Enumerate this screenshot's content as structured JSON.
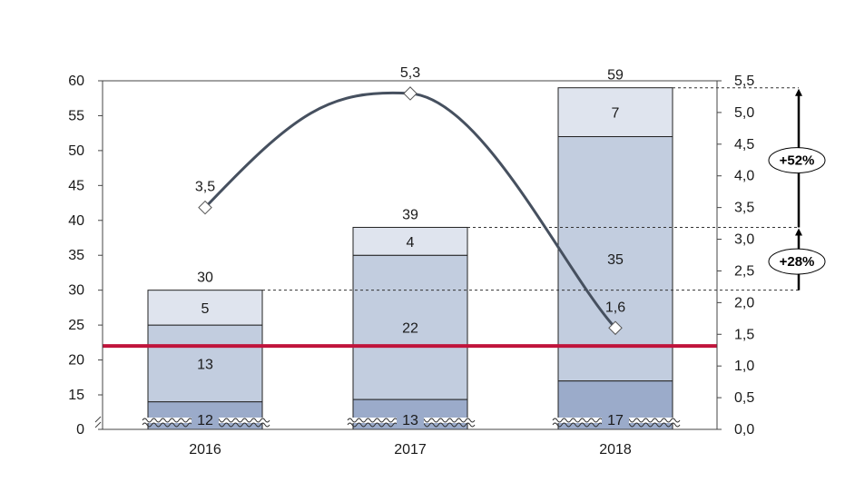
{
  "chart_data": {
    "type": "bar",
    "subtype": "stacked-bar-with-line",
    "title": "",
    "xlabel": "",
    "ylabel": "",
    "categories": [
      "2016",
      "2017",
      "2018"
    ],
    "series": [
      {
        "values": [
          12,
          13,
          17
        ],
        "color": "#9babca"
      },
      {
        "values": [
          13,
          22,
          35
        ],
        "color": "#c2cddf"
      },
      {
        "values": [
          5,
          4,
          7
        ],
        "color": "#dfe4ee"
      }
    ],
    "totals": [
      30,
      39,
      59
    ],
    "line_series": {
      "values": [
        3.5,
        5.3,
        1.6
      ],
      "labels": [
        "3,5",
        "5,3",
        "1,6"
      ],
      "color": "#46505f"
    },
    "reference_line": {
      "value": 22,
      "color": "#c0143c"
    },
    "left_axis": {
      "ylim": [
        0,
        60
      ],
      "broken_below": 10,
      "ticks": [
        {
          "value": 0,
          "label": "0"
        },
        {
          "value": 15,
          "label": "15"
        },
        {
          "value": 20,
          "label": "20"
        },
        {
          "value": 25,
          "label": "25"
        },
        {
          "value": 30,
          "label": "30"
        },
        {
          "value": 35,
          "label": "35"
        },
        {
          "value": 40,
          "label": "40"
        },
        {
          "value": 45,
          "label": "45"
        },
        {
          "value": 50,
          "label": "50"
        },
        {
          "value": 55,
          "label": "55"
        },
        {
          "value": 60,
          "label": "60"
        }
      ]
    },
    "right_axis": {
      "ylim": [
        0,
        5.5
      ],
      "ticks": [
        "0,0",
        "0,5",
        "1,0",
        "1,5",
        "2,0",
        "2,5",
        "3,0",
        "3,5",
        "4,0",
        "4,5",
        "5,0",
        "5,5"
      ]
    },
    "growth_annotations": [
      {
        "label": "+28%",
        "from_total": 30,
        "to_total": 39
      },
      {
        "label": "+52%",
        "from_total": 39,
        "to_total": 59
      }
    ],
    "grid": false,
    "legend": "none"
  }
}
